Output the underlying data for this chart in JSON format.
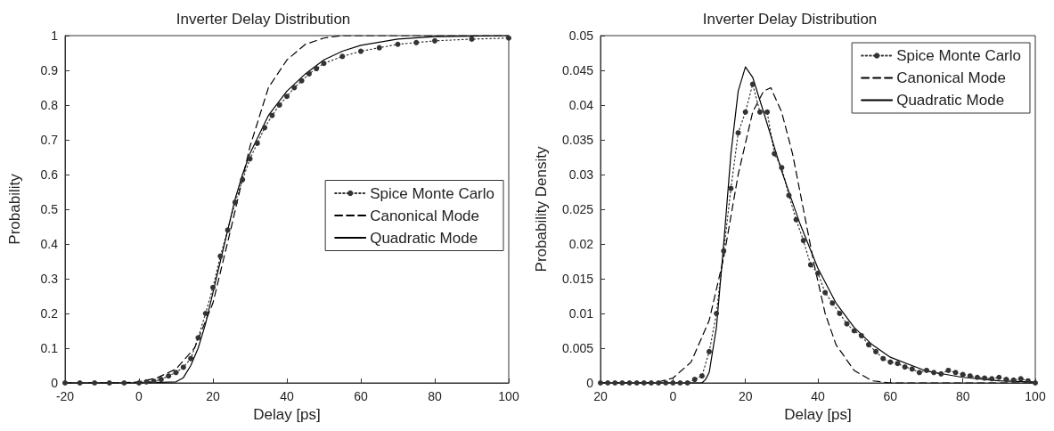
{
  "chart_data": [
    {
      "type": "line",
      "title": "Inverter Delay Distribution",
      "xlabel": "Delay [ps]",
      "ylabel": "Probability",
      "xlim": [
        -20,
        100
      ],
      "xticks": [
        -20,
        0,
        20,
        40,
        60,
        80,
        100
      ],
      "ylim": [
        0,
        1
      ],
      "yticks": [
        0,
        0.1,
        0.2,
        0.3,
        0.4,
        0.5,
        0.6,
        0.7,
        0.8,
        0.9,
        1
      ],
      "grid": false,
      "legend": "right",
      "series": [
        {
          "name": "Spice Monte Carlo",
          "color": "#333333",
          "line_style": "dotted",
          "marker": "circle",
          "x": [
            -20,
            -16,
            -12,
            -8,
            -4,
            0,
            2,
            4,
            6,
            8,
            10,
            12,
            14,
            16,
            18,
            20,
            22,
            24,
            26,
            28,
            30,
            32,
            34,
            36,
            38,
            40,
            42,
            44,
            46,
            48,
            50,
            55,
            60,
            65,
            70,
            75,
            80,
            90,
            100
          ],
          "values": [
            0,
            0,
            0,
            0,
            0,
            0,
            0.003,
            0.005,
            0.01,
            0.02,
            0.03,
            0.045,
            0.07,
            0.13,
            0.2,
            0.275,
            0.365,
            0.44,
            0.52,
            0.585,
            0.645,
            0.69,
            0.735,
            0.77,
            0.8,
            0.825,
            0.85,
            0.87,
            0.89,
            0.905,
            0.92,
            0.94,
            0.955,
            0.965,
            0.975,
            0.98,
            0.985,
            0.99,
            0.993
          ]
        },
        {
          "name": "Canonical Mode",
          "color": "#000000",
          "line_style": "dashed",
          "x": [
            -20,
            -5,
            0,
            5,
            10,
            15,
            20,
            25,
            30,
            35,
            40,
            45,
            50,
            55,
            100
          ],
          "values": [
            0,
            0,
            0.003,
            0.015,
            0.04,
            0.1,
            0.23,
            0.45,
            0.68,
            0.85,
            0.93,
            0.975,
            0.993,
            1,
            1
          ]
        },
        {
          "name": "Quadratic Mode",
          "color": "#000000",
          "line_style": "solid",
          "x": [
            -20,
            0,
            10,
            12,
            14,
            16,
            18,
            20,
            22,
            24,
            26,
            28,
            30,
            35,
            40,
            45,
            50,
            55,
            60,
            70,
            80,
            100
          ],
          "values": [
            0,
            0,
            0.003,
            0.015,
            0.05,
            0.1,
            0.17,
            0.26,
            0.35,
            0.44,
            0.53,
            0.6,
            0.66,
            0.77,
            0.84,
            0.89,
            0.93,
            0.955,
            0.972,
            0.99,
            0.997,
            1
          ]
        }
      ]
    },
    {
      "type": "line",
      "title": "Inverter Delay Distribution",
      "xlabel": "Delay [ps]",
      "ylabel": "Probability Density",
      "xlim": [
        -20,
        100
      ],
      "xticks": [
        {
          "value": -20,
          "label": "20"
        },
        0,
        20,
        40,
        60,
        80,
        100
      ],
      "ylim": [
        0,
        0.05
      ],
      "yticks": [
        0,
        0.005,
        0.01,
        0.015,
        0.02,
        0.025,
        0.03,
        0.035,
        0.04,
        0.045,
        0.05
      ],
      "grid": false,
      "legend": "top right",
      "series": [
        {
          "name": "Spice Monte Carlo",
          "color": "#333333",
          "line_style": "dotted",
          "marker": "circle",
          "x": [
            -20,
            -18,
            -16,
            -14,
            -12,
            -10,
            -8,
            -6,
            -4,
            -2,
            0,
            2,
            4,
            6,
            8,
            10,
            12,
            14,
            16,
            18,
            20,
            22,
            24,
            26,
            28,
            30,
            32,
            34,
            36,
            38,
            40,
            42,
            44,
            46,
            48,
            50,
            52,
            54,
            56,
            58,
            60,
            62,
            64,
            66,
            68,
            70,
            72,
            74,
            76,
            78,
            80,
            82,
            84,
            86,
            88,
            90,
            92,
            94,
            96,
            98,
            100
          ],
          "values": [
            0,
            0,
            0,
            0,
            0,
            0,
            0,
            0,
            0,
            0,
            0,
            0,
            0,
            0.0005,
            0.001,
            0.0045,
            0.01,
            0.019,
            0.028,
            0.036,
            0.039,
            0.043,
            0.039,
            0.039,
            0.033,
            0.031,
            0.027,
            0.0235,
            0.0205,
            0.017,
            0.0158,
            0.013,
            0.0115,
            0.01,
            0.0085,
            0.0075,
            0.0068,
            0.0055,
            0.0045,
            0.0035,
            0.003,
            0.0028,
            0.0023,
            0.002,
            0.0015,
            0.0018,
            0.0015,
            0.0013,
            0.0018,
            0.0015,
            0.0012,
            0.001,
            0.0008,
            0.0007,
            0.0006,
            0.0008,
            0.0005,
            0.0004,
            0.0006,
            0.0003,
            0
          ]
        },
        {
          "name": "Canonical Mode",
          "color": "#000000",
          "line_style": "dashed",
          "x": [
            -20,
            -5,
            0,
            5,
            10,
            14,
            18,
            22,
            25,
            27,
            30,
            33,
            36,
            39,
            42,
            45,
            50,
            55,
            60,
            100
          ],
          "values": [
            0,
            0,
            0.0007,
            0.003,
            0.009,
            0.018,
            0.03,
            0.039,
            0.042,
            0.0425,
            0.039,
            0.033,
            0.025,
            0.017,
            0.01,
            0.0055,
            0.0018,
            0.0003,
            0,
            0
          ]
        },
        {
          "name": "Quadratic Mode",
          "color": "#000000",
          "line_style": "solid",
          "x": [
            -20,
            8,
            9,
            10,
            12,
            14,
            16,
            18,
            20,
            22,
            25,
            30,
            35,
            40,
            45,
            50,
            55,
            60,
            70,
            80,
            90,
            100
          ],
          "values": [
            0,
            0,
            0.0005,
            0.0015,
            0.008,
            0.02,
            0.033,
            0.042,
            0.0455,
            0.044,
            0.039,
            0.0305,
            0.023,
            0.0165,
            0.0115,
            0.008,
            0.0055,
            0.0037,
            0.0017,
            0.0008,
            0.0003,
            0.0001
          ]
        }
      ]
    }
  ]
}
